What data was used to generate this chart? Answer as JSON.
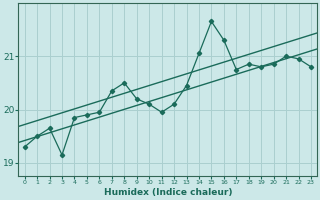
{
  "xlabel": "Humidex (Indice chaleur)",
  "ylabel": "",
  "bg_color": "#cce8e8",
  "line_color": "#1a6b5a",
  "grid_color": "#aacfcf",
  "axis_color": "#336655",
  "x_data": [
    0,
    1,
    2,
    3,
    4,
    5,
    6,
    7,
    8,
    9,
    10,
    11,
    12,
    13,
    14,
    15,
    16,
    17,
    18,
    19,
    20,
    21,
    22,
    23
  ],
  "y_main": [
    19.3,
    19.5,
    19.65,
    19.15,
    19.85,
    19.9,
    19.95,
    20.35,
    20.5,
    20.2,
    20.1,
    19.95,
    20.1,
    20.45,
    21.05,
    21.65,
    21.3,
    20.75,
    20.85,
    20.8,
    20.85,
    21.0,
    20.95,
    20.8
  ],
  "reg_slope_upper": 0.073,
  "reg_intercept_upper": 19.72,
  "reg_slope_lower": 0.073,
  "reg_intercept_lower": 19.42,
  "yticks": [
    19,
    20,
    21
  ],
  "ylim": [
    18.75,
    22.0
  ],
  "xlim": [
    -0.5,
    23.5
  ]
}
